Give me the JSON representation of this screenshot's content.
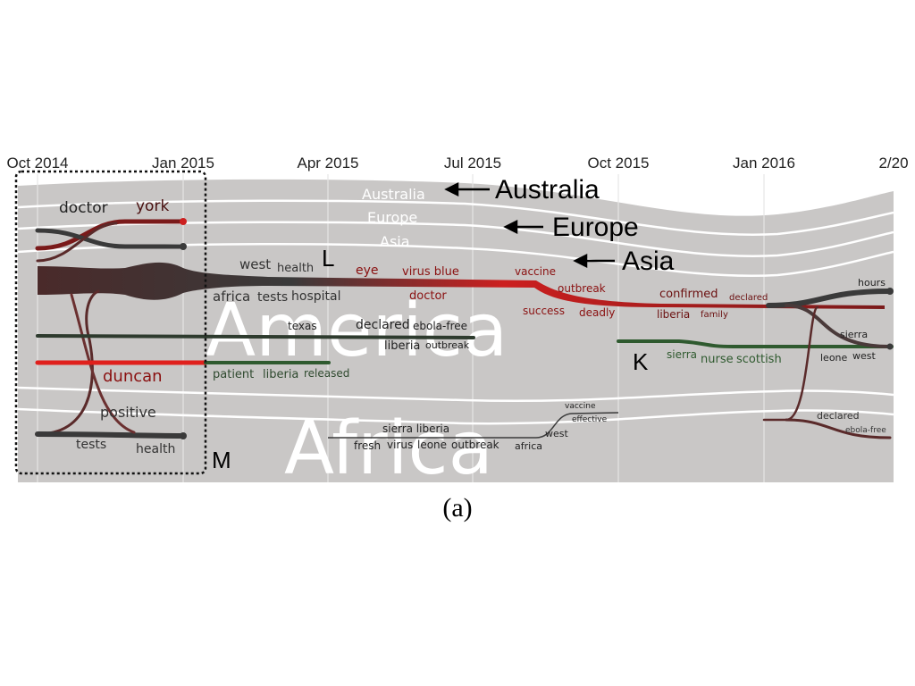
{
  "timeline": {
    "ticks": [
      "Oct 2014",
      "Jan 2015",
      "Apr 2015",
      "Jul 2015",
      "Oct 2015",
      "Jan 2016",
      "2/20"
    ]
  },
  "regions": {
    "australia_label": "Australia",
    "europe_label": "Europe",
    "asia_label": "Asia",
    "america_label": "America",
    "africa_label": "Africa"
  },
  "callouts": {
    "australia": "Australia",
    "europe": "Europe",
    "asia": "Asia"
  },
  "markers": {
    "L": "L",
    "M": "M",
    "K": "K"
  },
  "keywords": {
    "doctor": "doctor",
    "york": "york",
    "duncan": "duncan",
    "positive": "positive",
    "tests": "tests",
    "health_m": "health",
    "west": "west",
    "health_l": "health",
    "africa": "africa",
    "tests_l": "tests",
    "hospital": "hospital",
    "eye": "eye",
    "virus_blue": "virus blue",
    "doctor_l": "doctor",
    "vaccine": "vaccine",
    "outbreak_l": "outbreak",
    "success": "success",
    "deadly": "deadly",
    "confirmed": "confirmed",
    "declared_l": "declared",
    "liberia_l": "liberia",
    "family": "family",
    "hours": "hours",
    "sierra_r": "sierra",
    "leone": "leone",
    "west_r": "west",
    "texas": "texas",
    "declared_a": "declared",
    "ebola_free_a": "ebola-free",
    "liberia_a": "liberia",
    "outbreak_a": "outbreak",
    "patient": "patient",
    "liberia_p": "liberia",
    "released": "released",
    "sierra_k": "sierra",
    "nurse": "nurse",
    "scottish": "scottish",
    "sierra_liberia": "sierra liberia",
    "fresh": "fresh",
    "virus_af": "virus",
    "leone_af": "leone",
    "outbreak_af": "outbreak",
    "africa_af": "africa",
    "west_af": "west",
    "vaccine_af": "vaccine",
    "effective": "effective",
    "declared_r": "declared",
    "ebola_free_r": "ebola-free"
  },
  "caption": "(a)",
  "colors": {
    "band": "#c9c7c6",
    "red": "#cc1f1f",
    "dark": "#3a3a3a",
    "brown": "#6b2a2a",
    "green": "#2f5a2f"
  }
}
